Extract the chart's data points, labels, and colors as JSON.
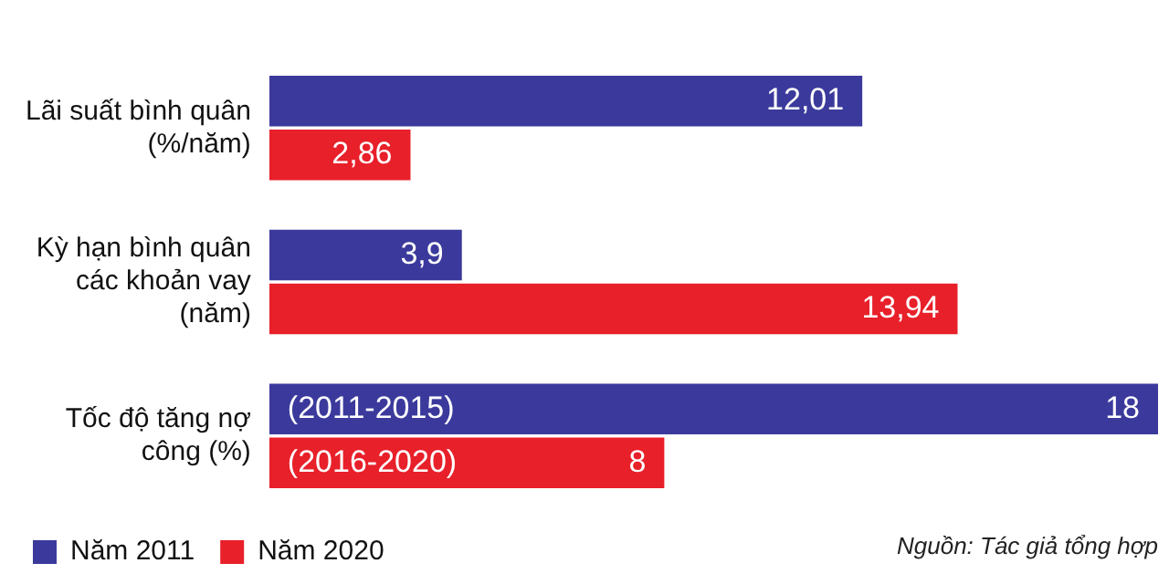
{
  "chart_data": {
    "type": "bar",
    "orientation": "horizontal",
    "categories": [
      "Lãi suất bình quân (%/năm)",
      "Kỳ hạn bình quân các khoản vay (năm)",
      "Tốc độ tăng nợ công (%)"
    ],
    "series": [
      {
        "name": "Năm 2011",
        "color": "#3b3a9c",
        "values": [
          12.01,
          3.9,
          18
        ],
        "value_labels": [
          "12,01",
          "3,9",
          "18"
        ]
      },
      {
        "name": "Năm 2020",
        "color": "#e8202a",
        "values": [
          2.86,
          13.94,
          8
        ],
        "value_labels": [
          "2,86",
          "13,94",
          "8"
        ]
      }
    ],
    "tick_labels": "y",
    "grid": false,
    "legend": "bottom left",
    "annotations": [
      {
        "text": "(2011-2015)",
        "x": 0,
        "y": "Tốc độ tăng nợ công (%)"
      },
      {
        "text": "(2016-2020)",
        "x": 0,
        "y": "Tốc độ tăng nợ công (%)"
      },
      "Nguồn: Tác giả tổng hợp"
    ]
  }
}
